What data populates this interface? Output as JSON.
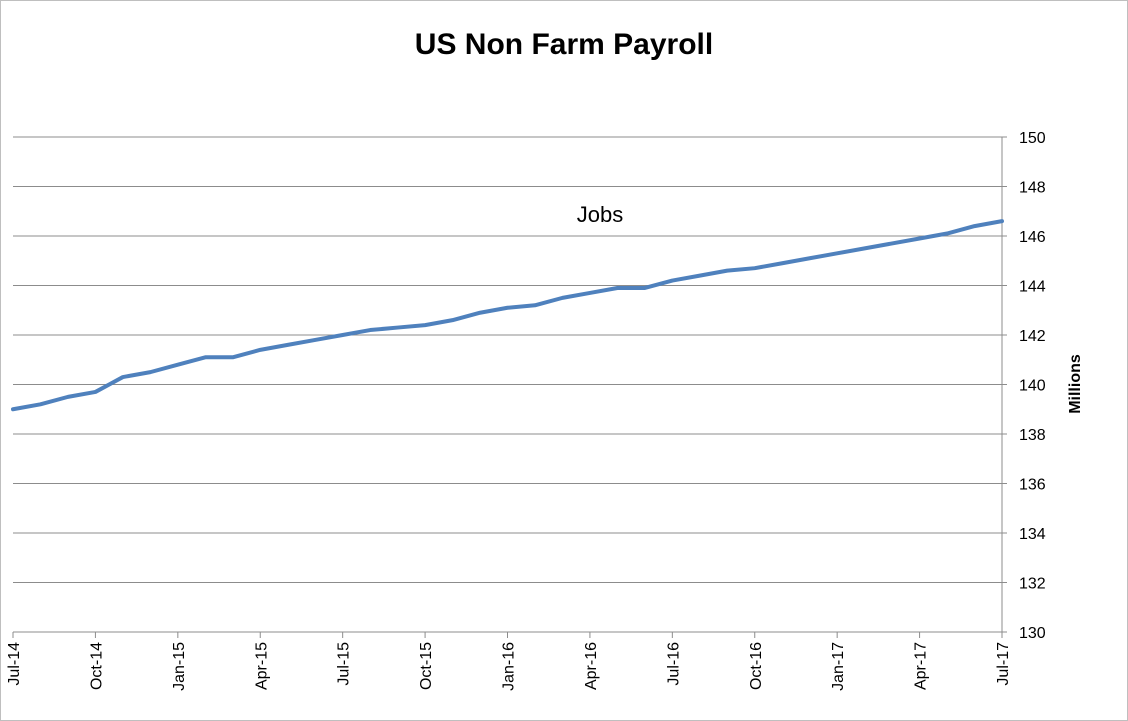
{
  "chart_data": {
    "type": "line",
    "title": "US Non Farm Payroll",
    "xlabel": "",
    "ylabel": "Millions",
    "annotation": "Jobs",
    "y_axis_position": "right",
    "ylim": [
      130,
      150
    ],
    "y_ticks": [
      130,
      132,
      134,
      136,
      138,
      140,
      142,
      144,
      146,
      148,
      150
    ],
    "grid": true,
    "legend": "none",
    "x_tick_labels": [
      "Jul-14",
      "Oct-14",
      "Jan-15",
      "Apr-15",
      "Jul-15",
      "Oct-15",
      "Jan-16",
      "Apr-16",
      "Jul-16",
      "Oct-16",
      "Jan-17",
      "Apr-17",
      "Jul-17"
    ],
    "x": [
      "Jul-14",
      "Aug-14",
      "Sep-14",
      "Oct-14",
      "Nov-14",
      "Dec-14",
      "Jan-15",
      "Feb-15",
      "Mar-15",
      "Apr-15",
      "May-15",
      "Jun-15",
      "Jul-15",
      "Aug-15",
      "Sep-15",
      "Oct-15",
      "Nov-15",
      "Dec-15",
      "Jan-16",
      "Feb-16",
      "Mar-16",
      "Apr-16",
      "May-16",
      "Jun-16",
      "Jul-16",
      "Aug-16",
      "Sep-16",
      "Oct-16",
      "Nov-16",
      "Dec-16",
      "Jan-17",
      "Feb-17",
      "Mar-17",
      "Apr-17",
      "May-17",
      "Jun-17",
      "Jul-17"
    ],
    "series": [
      {
        "color": "#4f81bd",
        "values": [
          139.0,
          139.2,
          139.5,
          139.7,
          140.3,
          140.5,
          140.8,
          141.1,
          141.1,
          141.4,
          141.6,
          141.8,
          142.0,
          142.2,
          142.3,
          142.4,
          142.6,
          142.9,
          143.1,
          143.2,
          143.5,
          143.7,
          143.9,
          143.9,
          144.2,
          144.4,
          144.6,
          144.7,
          144.9,
          145.1,
          145.3,
          145.5,
          145.7,
          145.9,
          146.1,
          146.4,
          146.6
        ]
      }
    ]
  }
}
